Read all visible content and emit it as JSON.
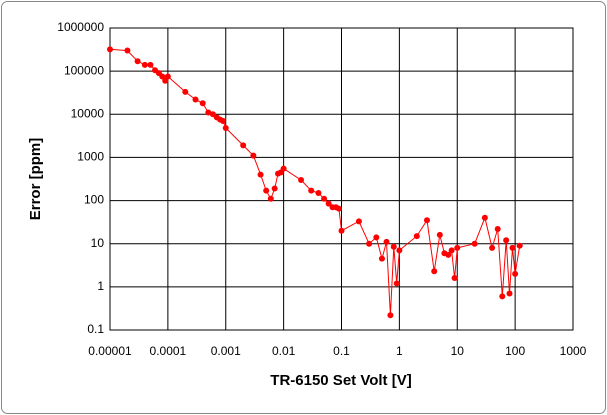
{
  "chart_data": {
    "type": "line",
    "x_label": "TR-6150 Set Volt [V]",
    "y_label": "Error [ppm]",
    "x": [
      1e-05,
      2e-05,
      3e-05,
      4e-05,
      5e-05,
      6e-05,
      7e-05,
      8e-05,
      9e-05,
      0.0001,
      0.0002,
      0.0003,
      0.0004,
      0.0005,
      0.0006,
      0.0007,
      0.0008,
      0.0009,
      0.001,
      0.002,
      0.003,
      0.004,
      0.005,
      0.006,
      0.007,
      0.008,
      0.009,
      0.01,
      0.02,
      0.03,
      0.04,
      0.05,
      0.06,
      0.07,
      0.08,
      0.09,
      0.1,
      0.2,
      0.3,
      0.4,
      0.5,
      0.6,
      0.7,
      0.8,
      0.9,
      1,
      2,
      3,
      4,
      5,
      6,
      7,
      8,
      9,
      10,
      20,
      30,
      40,
      50,
      60,
      70,
      80,
      90,
      100,
      120
    ],
    "values": [
      320000,
      300000,
      170000,
      140000,
      140000,
      105000,
      90000,
      75000,
      60000,
      75000,
      33000,
      22000,
      18000,
      11000,
      10000,
      8500,
      7500,
      7000,
      4800,
      1900,
      1100,
      400,
      170,
      110,
      190,
      420,
      450,
      550,
      300,
      170,
      150,
      110,
      85,
      70,
      70,
      65,
      20,
      33,
      10,
      14,
      4.5,
      11,
      0.22,
      8.5,
      1.2,
      7,
      15,
      35,
      2.3,
      16,
      6,
      5.5,
      7,
      1.6,
      8,
      10,
      40,
      8,
      22,
      0.6,
      12,
      0.7,
      8,
      2,
      9
    ],
    "color": "#ff0000",
    "xscale": "log",
    "yscale": "log",
    "xlim": [
      1e-05,
      1000
    ],
    "ylim": [
      0.1,
      1000000
    ],
    "xticks": [
      1e-05,
      0.0001,
      0.001,
      0.01,
      0.1,
      1,
      10,
      100,
      1000
    ],
    "yticks": [
      0.1,
      1,
      10,
      100,
      1000,
      10000,
      100000,
      1000000
    ],
    "grid": true
  }
}
